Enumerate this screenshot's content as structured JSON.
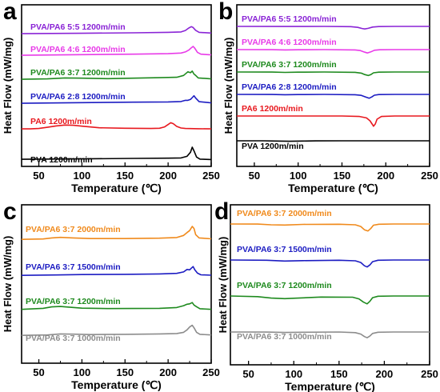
{
  "chart_data": [
    {
      "panel_label": "a",
      "type": "line",
      "xlabel": "Temperature (℃)",
      "ylabel": "Heat Flow (mW/mg)",
      "xlim": [
        30,
        250
      ],
      "xticks": [
        "50",
        "100",
        "150",
        "200",
        "250"
      ],
      "series": [
        {
          "name": "PVA 1200m/min",
          "color": "#000000",
          "x": [
            30,
            100,
            160,
            200,
            215,
            222,
            226,
            228,
            230,
            233,
            237,
            250
          ],
          "y": [
            0.3,
            0.5,
            0.7,
            0.8,
            0.9,
            1.6,
            3.4,
            5.6,
            4.0,
            1.3,
            0.4,
            0.2
          ]
        },
        {
          "name": "PA6 1200m/min",
          "color": "#e8191f",
          "x": [
            30,
            40,
            50,
            60,
            70,
            80,
            90,
            100,
            120,
            150,
            180,
            190,
            196,
            200,
            203,
            206,
            210,
            215,
            220,
            235,
            250
          ],
          "y": [
            0.3,
            0.3,
            0.5,
            1.0,
            1.6,
            2.0,
            1.9,
            1.5,
            0.8,
            0.6,
            0.5,
            0.6,
            1.2,
            2.2,
            3.0,
            2.6,
            1.4,
            0.7,
            0.5,
            0.4,
            0.3
          ]
        },
        {
          "name": "PVA/PA6 2:8 1200m/min",
          "color": "#1c1cc2",
          "x": [
            30,
            100,
            160,
            200,
            215,
            220,
            223,
            226,
            228,
            230,
            232,
            236,
            250
          ],
          "y": [
            0.3,
            0.6,
            0.8,
            0.9,
            1.1,
            1.6,
            1.6,
            2.0,
            2.8,
            3.6,
            2.6,
            1.0,
            0.5
          ]
        },
        {
          "name": "PVA/PA6 3:7 1200m/min",
          "color": "#1e8a1e",
          "x": [
            30,
            60,
            80,
            100,
            130,
            160,
            190,
            210,
            218,
            223,
            226,
            228,
            230,
            232,
            235,
            250
          ],
          "y": [
            0.3,
            0.5,
            0.9,
            0.8,
            0.6,
            0.8,
            1.0,
            1.2,
            2.0,
            3.6,
            3.2,
            3.9,
            2.6,
            2.0,
            0.9,
            0.5
          ]
        },
        {
          "name": "PVA/PA6 4:6 1200m/min",
          "color": "#e83be8",
          "x": [
            30,
            100,
            160,
            200,
            215,
            220,
            224,
            227,
            229,
            231,
            234,
            238,
            250
          ],
          "y": [
            0.3,
            0.6,
            0.8,
            1.0,
            1.3,
            1.8,
            2.6,
            3.6,
            4.2,
            3.4,
            1.6,
            0.8,
            0.5
          ]
        },
        {
          "name": "PVA/PA6 5:5 1200m/min",
          "color": "#8a24d6",
          "x": [
            30,
            100,
            160,
            200,
            215,
            220,
            224,
            227,
            229,
            232,
            236,
            250
          ],
          "y": [
            0.3,
            0.5,
            0.7,
            0.9,
            1.1,
            1.7,
            2.8,
            3.4,
            3.0,
            1.8,
            0.9,
            0.6
          ]
        }
      ]
    },
    {
      "panel_label": "b",
      "type": "line",
      "xlabel": "Temperature (℃)",
      "ylabel": "Heat Flow (mW/mg)",
      "xlim": [
        30,
        250
      ],
      "xticks": [
        "50",
        "100",
        "150",
        "200",
        "250"
      ],
      "series": [
        {
          "name": "PVA 1200m/min",
          "color": "#000000",
          "x": [
            30,
            60,
            75,
            90,
            105,
            120,
            150,
            200,
            250
          ],
          "y": [
            0.0,
            0.0,
            -0.15,
            -0.3,
            -0.15,
            -0.05,
            0.0,
            0.0,
            0.0
          ]
        },
        {
          "name": "PA6 1200m/min",
          "color": "#e8191f",
          "x": [
            30,
            100,
            150,
            170,
            178,
            182,
            185,
            186,
            188,
            190,
            195,
            210,
            250
          ],
          "y": [
            0.0,
            0.0,
            0.0,
            -0.3,
            -1.2,
            -3.0,
            -5.5,
            -6.4,
            -5.0,
            -2.0,
            -0.3,
            0.0,
            0.0
          ]
        },
        {
          "name": "PVA/PA6 2:8 1200m/min",
          "color": "#1c1cc2",
          "x": [
            30,
            70,
            85,
            100,
            130,
            165,
            172,
            177,
            181,
            184,
            187,
            192,
            210,
            250
          ],
          "y": [
            0.0,
            -0.05,
            -0.2,
            -0.1,
            0.0,
            -0.2,
            -0.6,
            -1.6,
            -2.4,
            -1.6,
            -0.5,
            -0.1,
            0.0,
            0.0
          ]
        },
        {
          "name": "PVA/PA6 3:7 1200m/min",
          "color": "#1e8a1e",
          "x": [
            30,
            70,
            85,
            100,
            130,
            165,
            172,
            176,
            180,
            183,
            186,
            192,
            210,
            250
          ],
          "y": [
            0.0,
            -0.05,
            -0.25,
            -0.1,
            0.0,
            -0.2,
            -0.7,
            -1.6,
            -2.2,
            -1.6,
            -0.5,
            -0.1,
            0.0,
            0.0
          ]
        },
        {
          "name": "PVA/PA6 4:6 1200m/min",
          "color": "#e83be8",
          "x": [
            30,
            70,
            85,
            100,
            130,
            165,
            171,
            176,
            179,
            183,
            187,
            193,
            210,
            250
          ],
          "y": [
            0.0,
            -0.05,
            -0.2,
            -0.1,
            0.0,
            -0.2,
            -0.6,
            -1.6,
            -2.1,
            -1.4,
            -0.4,
            -0.1,
            0.0,
            0.0
          ]
        },
        {
          "name": "PVA/PA6 5:5 1200m/min",
          "color": "#8a24d6",
          "x": [
            30,
            80,
            130,
            160,
            168,
            173,
            176,
            180,
            185,
            192,
            210,
            250
          ],
          "y": [
            0.0,
            -0.05,
            0.0,
            -0.15,
            -0.6,
            -1.3,
            -1.6,
            -1.2,
            -0.4,
            -0.1,
            0.0,
            0.0
          ]
        }
      ]
    },
    {
      "panel_label": "c",
      "type": "line",
      "xlabel": "Temperature (℃)",
      "ylabel": "Heat Flow (mW/mg)",
      "xlim": [
        30,
        250
      ],
      "xticks": [
        "50",
        "100",
        "150",
        "200",
        "250"
      ],
      "series": [
        {
          "name": "PVA/PA6 3:7 1000m/min",
          "color": "#8c8c8c",
          "x": [
            30,
            60,
            75,
            90,
            110,
            150,
            190,
            210,
            218,
            222,
            225,
            228,
            230,
            233,
            237,
            250
          ],
          "y": [
            0.3,
            0.5,
            1.0,
            0.9,
            0.7,
            0.8,
            1.0,
            1.2,
            1.8,
            3.0,
            4.4,
            5.2,
            4.0,
            1.8,
            0.8,
            0.5
          ]
        },
        {
          "name": "PVA/PA6 3:7 1200m/min",
          "color": "#1e8a1e",
          "x": [
            30,
            55,
            65,
            75,
            85,
            100,
            130,
            190,
            210,
            218,
            222,
            225,
            228,
            230,
            233,
            237,
            250
          ],
          "y": [
            0.5,
            1.0,
            1.7,
            1.9,
            1.6,
            1.1,
            0.9,
            1.0,
            1.4,
            2.3,
            3.0,
            3.2,
            3.8,
            2.6,
            1.8,
            0.8,
            0.5
          ]
        },
        {
          "name": "PVA/PA6 3:7 1500m/min",
          "color": "#1c1cc2",
          "x": [
            30,
            70,
            100,
            150,
            190,
            210,
            218,
            222,
            225,
            227,
            229,
            231,
            234,
            238,
            250
          ],
          "y": [
            0.3,
            0.5,
            0.7,
            0.8,
            1.0,
            1.3,
            2.0,
            3.2,
            3.0,
            3.8,
            4.6,
            3.0,
            1.4,
            0.6,
            0.4
          ]
        },
        {
          "name": "PVA/PA6 3:7 2000m/min",
          "color": "#f08a1c",
          "x": [
            30,
            55,
            65,
            75,
            90,
            110,
            150,
            190,
            210,
            218,
            222,
            225,
            228,
            230,
            232,
            236,
            250
          ],
          "y": [
            0.3,
            0.5,
            1.0,
            1.3,
            1.0,
            0.7,
            0.7,
            0.9,
            1.2,
            2.2,
            3.6,
            4.6,
            6.6,
            5.6,
            2.6,
            1.0,
            0.6
          ]
        }
      ]
    },
    {
      "panel_label": "d",
      "type": "line",
      "xlabel": "Temperature (℃)",
      "ylabel": "Heat Flow (mW/mg)",
      "xlim": [
        30,
        250
      ],
      "xticks": [
        "50",
        "100",
        "150",
        "200",
        "250"
      ],
      "series": [
        {
          "name": "PVA/PA6 3:7 1000m/min",
          "color": "#8c8c8c",
          "x": [
            30,
            70,
            90,
            110,
            150,
            168,
            174,
            178,
            181,
            184,
            187,
            193,
            210,
            250
          ],
          "y": [
            0.0,
            -0.05,
            -0.25,
            -0.1,
            0.0,
            -0.3,
            -1.0,
            -2.2,
            -2.8,
            -2.0,
            -0.7,
            -0.1,
            0.0,
            0.0
          ]
        },
        {
          "name": "PVA/PA6 3:7 1200m/min",
          "color": "#1e8a1e",
          "x": [
            30,
            60,
            75,
            90,
            100,
            130,
            165,
            172,
            177,
            181,
            184,
            187,
            193,
            210,
            250
          ],
          "y": [
            0.0,
            -0.3,
            -1.0,
            -1.3,
            -1.1,
            -0.5,
            -0.6,
            -1.4,
            -3.0,
            -3.8,
            -2.6,
            -0.8,
            -0.1,
            0.0,
            0.0
          ]
        },
        {
          "name": "PVA/PA6 3:7 1500m/min",
          "color": "#1c1cc2",
          "x": [
            30,
            70,
            90,
            110,
            150,
            168,
            174,
            178,
            181,
            184,
            187,
            193,
            210,
            250
          ],
          "y": [
            0.0,
            -0.1,
            -0.5,
            -0.3,
            -0.1,
            -0.4,
            -1.2,
            -2.8,
            -3.4,
            -2.4,
            -0.8,
            -0.1,
            0.0,
            0.0
          ]
        },
        {
          "name": "PVA/PA6 3:7 2000m/min",
          "color": "#f08a1c",
          "x": [
            30,
            60,
            75,
            90,
            110,
            150,
            168,
            174,
            178,
            182,
            185,
            188,
            194,
            210,
            250
          ],
          "y": [
            0.0,
            -0.05,
            -0.4,
            -0.5,
            -0.2,
            -0.1,
            -0.4,
            -1.2,
            -2.8,
            -3.4,
            -2.2,
            -0.6,
            -0.1,
            0.0,
            0.0
          ]
        }
      ]
    }
  ]
}
